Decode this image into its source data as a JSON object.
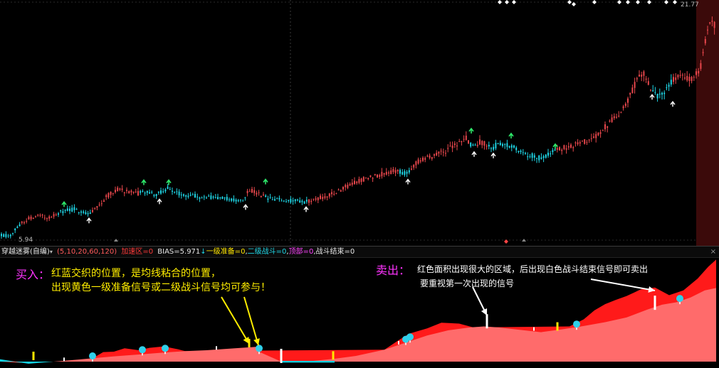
{
  "upper": {
    "price_high_label": "21.77",
    "price_low_label": "5.94"
  },
  "indicator_bar": {
    "name": "穿越迷雾(自编)",
    "params": "(5,10,20,60,120)",
    "accel": "加速区=0",
    "bias": "BIAS=5.971",
    "level1": "一级准备=0",
    "level2": "二级战斗=0",
    "top": "顶部=0",
    "end": "战斗结束=0"
  },
  "annotations": {
    "buy_title": "买入：",
    "buy_line1": "红蓝交织的位置，是均线粘合的位置，",
    "buy_line2": "出现黄色一级准备信号或二级战斗信号均可参与！",
    "sell_title": "卖出：",
    "sell_line1": "红色面积出现很大的区域，后出现白色战斗结束信号即可卖出",
    "sell_line2": "要重视第一次出现的信号"
  },
  "colors": {
    "up": "#e8474c",
    "down": "#1fd6e6",
    "bg": "#000000",
    "fill_main": "#ff6b6b",
    "fill_accel": "#ff1a1a",
    "fill_cyan": "#12d0e0",
    "signal_yellow": "#ffe600",
    "signal_white": "#ffffff",
    "dot_cyan": "#2fd0ea",
    "annot_yellow": "#ffee00",
    "annot_magenta": "#ff33ff"
  },
  "chart_data": [
    {
      "type": "candlestick",
      "title": "",
      "price_range": [
        5.94,
        21.77
      ],
      "anchors": [
        [
          0,
          5.95
        ],
        [
          15,
          5.9
        ],
        [
          25,
          6.6
        ],
        [
          40,
          7.1
        ],
        [
          55,
          7.3
        ],
        [
          70,
          7.2
        ],
        [
          85,
          7.6
        ],
        [
          105,
          7.8
        ],
        [
          125,
          7.5
        ],
        [
          140,
          8.1
        ],
        [
          150,
          8.7
        ],
        [
          165,
          9.2
        ],
        [
          175,
          9.1
        ],
        [
          190,
          8.9
        ],
        [
          205,
          9.0
        ],
        [
          220,
          8.8
        ],
        [
          235,
          9.3
        ],
        [
          250,
          8.9
        ],
        [
          265,
          8.8
        ],
        [
          285,
          8.65
        ],
        [
          305,
          8.6
        ],
        [
          325,
          8.5
        ],
        [
          340,
          8.4
        ],
        [
          350,
          9.2
        ],
        [
          360,
          8.9
        ],
        [
          380,
          8.5
        ],
        [
          400,
          8.4
        ],
        [
          420,
          8.4
        ],
        [
          430,
          8.3
        ],
        [
          450,
          8.6
        ],
        [
          470,
          8.9
        ],
        [
          490,
          9.5
        ],
        [
          510,
          9.9
        ],
        [
          530,
          10.2
        ],
        [
          555,
          10.5
        ],
        [
          570,
          10.3
        ],
        [
          585,
          11.1
        ],
        [
          600,
          11.4
        ],
        [
          620,
          11.8
        ],
        [
          640,
          12.3
        ],
        [
          655,
          12.8
        ],
        [
          665,
          12.2
        ],
        [
          675,
          12.6
        ],
        [
          690,
          12.1
        ],
        [
          700,
          12.4
        ],
        [
          715,
          12.3
        ],
        [
          730,
          12.0
        ],
        [
          745,
          11.6
        ],
        [
          760,
          11.4
        ],
        [
          775,
          11.8
        ],
        [
          790,
          12.1
        ],
        [
          805,
          12.3
        ],
        [
          825,
          12.6
        ],
        [
          840,
          13.1
        ],
        [
          860,
          14.1
        ],
        [
          875,
          14.9
        ],
        [
          885,
          15.8
        ],
        [
          895,
          17.0
        ],
        [
          905,
          17.5
        ],
        [
          915,
          16.3
        ],
        [
          925,
          15.8
        ],
        [
          935,
          16.2
        ],
        [
          945,
          16.9
        ],
        [
          955,
          17.2
        ],
        [
          965,
          17.0
        ],
        [
          975,
          17.1
        ],
        [
          985,
          18.0
        ],
        [
          990,
          19.6
        ],
        [
          995,
          20.8
        ],
        [
          1000,
          21.3
        ],
        [
          1006,
          20.5
        ]
      ],
      "down_ranges": [
        [
          0,
          28
        ],
        [
          80,
          130
        ],
        [
          195,
          345
        ],
        [
          370,
          432
        ],
        [
          560,
          575
        ],
        [
          660,
          670
        ],
        [
          685,
          780
        ],
        [
          915,
          945
        ]
      ],
      "markers": [
        {
          "x": 90,
          "price": 7.8,
          "kind": "green-arrow"
        },
        {
          "x": 202,
          "price": 9.35,
          "kind": "green-arrow"
        },
        {
          "x": 237,
          "price": 9.35,
          "kind": "green-arrow"
        },
        {
          "x": 373,
          "price": 9.4,
          "kind": "green-arrow"
        },
        {
          "x": 662,
          "price": 13.0,
          "kind": "green-arrow"
        },
        {
          "x": 718,
          "price": 12.65,
          "kind": "green-arrow"
        },
        {
          "x": 780,
          "price": 11.9,
          "kind": "green-arrow"
        },
        {
          "x": 125,
          "price": 7.25,
          "kind": "white-arrow"
        },
        {
          "x": 224,
          "price": 8.6,
          "kind": "white-arrow"
        },
        {
          "x": 345,
          "price": 8.2,
          "kind": "white-arrow"
        },
        {
          "x": 430,
          "price": 8.05,
          "kind": "white-arrow"
        },
        {
          "x": 573,
          "price": 10.0,
          "kind": "white-arrow"
        },
        {
          "x": 666,
          "price": 11.95,
          "kind": "white-arrow"
        },
        {
          "x": 693,
          "price": 11.85,
          "kind": "white-arrow"
        },
        {
          "x": 945,
          "price": 15.5,
          "kind": "white-arrow"
        },
        {
          "x": 916,
          "price": 16.0,
          "kind": "white-arrow"
        }
      ]
    },
    {
      "type": "area",
      "title": "",
      "series": [
        {
          "name": "",
          "x": [
            0,
            40,
            75,
            100,
            130,
            160,
            195,
            230,
            260,
            290,
            330,
            360,
            365,
            395,
            430,
            470,
            500,
            540,
            570,
            600,
            630,
            660,
            680,
            700,
            730,
            760,
            790,
            820,
            850,
            880,
            910,
            930,
            950,
            970,
            990,
            1006
          ],
          "values": [
            0.0,
            -0.3,
            0.0,
            0.3,
            0.7,
            1.1,
            1.5,
            1.9,
            2.2,
            2.4,
            2.8,
            3.1,
            2.0,
            0.0,
            0.0,
            0.6,
            1.2,
            2.5,
            4.0,
            5.5,
            6.6,
            7.2,
            7.4,
            7.2,
            6.7,
            6.2,
            6.8,
            7.5,
            8.3,
            9.3,
            11.0,
            12.0,
            12.5,
            13.5,
            15.0,
            15.5
          ]
        },
        {
          "name": "",
          "x": [
            130,
            145,
            160,
            175,
            195,
            210,
            230,
            250,
            260,
            540,
            560,
            575,
            600,
            620,
            645,
            665,
            800,
            820,
            835,
            850,
            865,
            880,
            900,
            920,
            940,
            960,
            980,
            995,
            1006
          ],
          "values": [
            0.7,
            2.0,
            2.1,
            2.8,
            2.4,
            2.9,
            3.2,
            2.6,
            2.2,
            2.5,
            4.5,
            5.9,
            7.0,
            8.2,
            8.0,
            7.2,
            7.4,
            8.9,
            10.8,
            12.1,
            13.0,
            13.8,
            15.2,
            15.6,
            14.0,
            15.0,
            17.5,
            20.0,
            21.5
          ]
        }
      ],
      "signals": [
        {
          "x": 47,
          "value": 0.3,
          "kind": "yellow-bar"
        },
        {
          "x": 350,
          "value": 3.0,
          "kind": "yellow-bar"
        },
        {
          "x": 468,
          "value": 0.4,
          "kind": "yellow-bar"
        },
        {
          "x": 783,
          "value": 6.5,
          "kind": "yellow-bar"
        },
        {
          "x": 90,
          "value": 0.1,
          "kind": "white-tick"
        },
        {
          "x": 304,
          "value": 2.5,
          "kind": "white-tick"
        },
        {
          "x": 395,
          "value": 0.0,
          "kind": "white-bar"
        },
        {
          "x": 560,
          "value": 3.6,
          "kind": "white-tick"
        },
        {
          "x": 684,
          "value": 7.3,
          "kind": "white-bar"
        },
        {
          "x": 750,
          "value": 6.5,
          "kind": "white-tick"
        },
        {
          "x": 920,
          "value": 11.2,
          "kind": "white-bar"
        },
        {
          "x": 130,
          "value": 0.9,
          "kind": "cyan-dot"
        },
        {
          "x": 200,
          "value": 2.2,
          "kind": "cyan-dot"
        },
        {
          "x": 232,
          "value": 2.5,
          "kind": "cyan-dot"
        },
        {
          "x": 364,
          "value": 2.5,
          "kind": "cyan-dot"
        },
        {
          "x": 570,
          "value": 4.4,
          "kind": "cyan-dot"
        },
        {
          "x": 576,
          "value": 4.9,
          "kind": "cyan-dot"
        },
        {
          "x": 810,
          "value": 7.6,
          "kind": "cyan-dot"
        },
        {
          "x": 955,
          "value": 13.0,
          "kind": "cyan-dot"
        }
      ]
    }
  ]
}
